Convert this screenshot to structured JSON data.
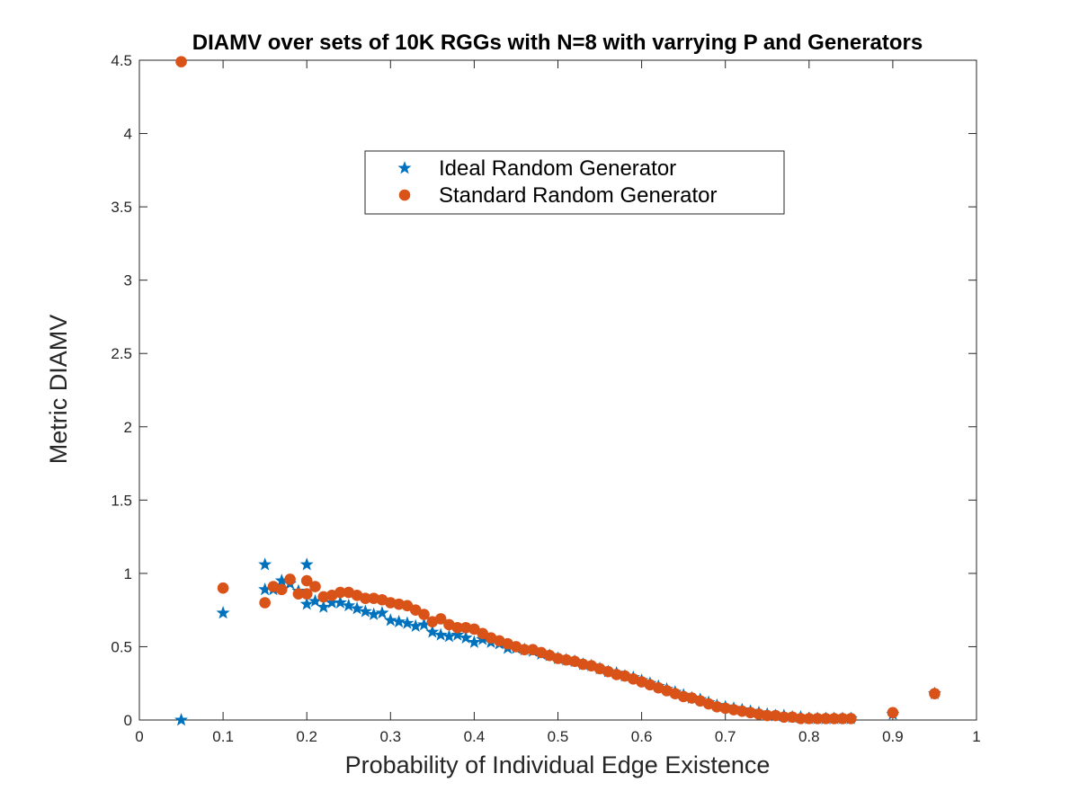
{
  "chart_data": {
    "type": "scatter",
    "title": "DIAMV over sets of 10K RGGs with N=8 with varrying P and Generators",
    "xlabel": "Probability of Individual Edge Existence",
    "ylabel": "Metric DIAMV",
    "xlim": [
      0,
      1
    ],
    "ylim": [
      0,
      4.5
    ],
    "xticks": [
      0,
      0.1,
      0.2,
      0.3,
      0.4,
      0.5,
      0.6,
      0.7,
      0.8,
      0.9,
      1
    ],
    "xtick_labels": [
      "0",
      "0.1",
      "0.2",
      "0.3",
      "0.4",
      "0.5",
      "0.6",
      "0.7",
      "0.8",
      "0.9",
      "1"
    ],
    "yticks": [
      0,
      0.5,
      1,
      1.5,
      2,
      2.5,
      3,
      3.5,
      4,
      4.5
    ],
    "ytick_labels": [
      "0",
      "0.5",
      "1",
      "1.5",
      "2",
      "2.5",
      "3",
      "3.5",
      "4",
      "4.5"
    ],
    "grid": false,
    "legend_position": "top-center",
    "series": [
      {
        "name": "Ideal Random Generator",
        "marker": "star",
        "color": "#0072BD",
        "points": [
          [
            0.05,
            0.0
          ],
          [
            0.1,
            0.73
          ],
          [
            0.15,
            1.06
          ],
          [
            0.15,
            0.89
          ],
          [
            0.16,
            0.89
          ],
          [
            0.17,
            0.95
          ],
          [
            0.18,
            0.93
          ],
          [
            0.19,
            0.88
          ],
          [
            0.2,
            1.06
          ],
          [
            0.2,
            0.79
          ],
          [
            0.21,
            0.81
          ],
          [
            0.22,
            0.77
          ],
          [
            0.23,
            0.8
          ],
          [
            0.24,
            0.8
          ],
          [
            0.25,
            0.78
          ],
          [
            0.26,
            0.76
          ],
          [
            0.27,
            0.74
          ],
          [
            0.28,
            0.72
          ],
          [
            0.29,
            0.73
          ],
          [
            0.3,
            0.68
          ],
          [
            0.31,
            0.67
          ],
          [
            0.32,
            0.66
          ],
          [
            0.33,
            0.64
          ],
          [
            0.34,
            0.65
          ],
          [
            0.35,
            0.6
          ],
          [
            0.36,
            0.58
          ],
          [
            0.37,
            0.57
          ],
          [
            0.38,
            0.58
          ],
          [
            0.39,
            0.56
          ],
          [
            0.4,
            0.53
          ],
          [
            0.41,
            0.55
          ],
          [
            0.42,
            0.53
          ],
          [
            0.43,
            0.52
          ],
          [
            0.44,
            0.49
          ],
          [
            0.45,
            0.49
          ],
          [
            0.46,
            0.48
          ],
          [
            0.47,
            0.47
          ],
          [
            0.48,
            0.45
          ],
          [
            0.49,
            0.44
          ],
          [
            0.5,
            0.42
          ],
          [
            0.51,
            0.41
          ],
          [
            0.52,
            0.4
          ],
          [
            0.53,
            0.38
          ],
          [
            0.54,
            0.37
          ],
          [
            0.55,
            0.35
          ],
          [
            0.56,
            0.33
          ],
          [
            0.57,
            0.32
          ],
          [
            0.58,
            0.3
          ],
          [
            0.59,
            0.29
          ],
          [
            0.6,
            0.27
          ],
          [
            0.61,
            0.25
          ],
          [
            0.62,
            0.23
          ],
          [
            0.63,
            0.21
          ],
          [
            0.64,
            0.19
          ],
          [
            0.65,
            0.17
          ],
          [
            0.66,
            0.15
          ],
          [
            0.67,
            0.14
          ],
          [
            0.68,
            0.12
          ],
          [
            0.69,
            0.1
          ],
          [
            0.7,
            0.09
          ],
          [
            0.71,
            0.08
          ],
          [
            0.72,
            0.07
          ],
          [
            0.73,
            0.06
          ],
          [
            0.74,
            0.05
          ],
          [
            0.75,
            0.04
          ],
          [
            0.76,
            0.03
          ],
          [
            0.77,
            0.03
          ],
          [
            0.78,
            0.02
          ],
          [
            0.79,
            0.02
          ],
          [
            0.8,
            0.01
          ],
          [
            0.81,
            0.01
          ],
          [
            0.82,
            0.01
          ],
          [
            0.83,
            0.01
          ],
          [
            0.84,
            0.01
          ],
          [
            0.85,
            0.01
          ],
          [
            0.9,
            0.04
          ],
          [
            0.95,
            0.18
          ]
        ]
      },
      {
        "name": "Standard Random Generator",
        "marker": "circle",
        "color": "#D95319",
        "points": [
          [
            0.05,
            4.49
          ],
          [
            0.1,
            0.9
          ],
          [
            0.15,
            0.8
          ],
          [
            0.16,
            0.91
          ],
          [
            0.17,
            0.89
          ],
          [
            0.18,
            0.96
          ],
          [
            0.19,
            0.86
          ],
          [
            0.2,
            0.95
          ],
          [
            0.2,
            0.86
          ],
          [
            0.21,
            0.91
          ],
          [
            0.22,
            0.84
          ],
          [
            0.23,
            0.85
          ],
          [
            0.24,
            0.87
          ],
          [
            0.25,
            0.87
          ],
          [
            0.26,
            0.85
          ],
          [
            0.27,
            0.83
          ],
          [
            0.28,
            0.83
          ],
          [
            0.29,
            0.82
          ],
          [
            0.3,
            0.8
          ],
          [
            0.31,
            0.79
          ],
          [
            0.32,
            0.78
          ],
          [
            0.33,
            0.75
          ],
          [
            0.34,
            0.72
          ],
          [
            0.35,
            0.67
          ],
          [
            0.36,
            0.69
          ],
          [
            0.37,
            0.65
          ],
          [
            0.38,
            0.63
          ],
          [
            0.39,
            0.63
          ],
          [
            0.4,
            0.62
          ],
          [
            0.41,
            0.59
          ],
          [
            0.42,
            0.56
          ],
          [
            0.43,
            0.54
          ],
          [
            0.44,
            0.52
          ],
          [
            0.45,
            0.5
          ],
          [
            0.46,
            0.48
          ],
          [
            0.47,
            0.48
          ],
          [
            0.48,
            0.46
          ],
          [
            0.49,
            0.44
          ],
          [
            0.5,
            0.42
          ],
          [
            0.51,
            0.41
          ],
          [
            0.52,
            0.4
          ],
          [
            0.53,
            0.38
          ],
          [
            0.54,
            0.37
          ],
          [
            0.55,
            0.35
          ],
          [
            0.56,
            0.33
          ],
          [
            0.57,
            0.31
          ],
          [
            0.58,
            0.3
          ],
          [
            0.59,
            0.28
          ],
          [
            0.6,
            0.26
          ],
          [
            0.61,
            0.24
          ],
          [
            0.62,
            0.22
          ],
          [
            0.63,
            0.2
          ],
          [
            0.64,
            0.18
          ],
          [
            0.65,
            0.16
          ],
          [
            0.66,
            0.15
          ],
          [
            0.67,
            0.13
          ],
          [
            0.68,
            0.11
          ],
          [
            0.69,
            0.09
          ],
          [
            0.7,
            0.08
          ],
          [
            0.71,
            0.07
          ],
          [
            0.72,
            0.06
          ],
          [
            0.73,
            0.05
          ],
          [
            0.74,
            0.04
          ],
          [
            0.75,
            0.03
          ],
          [
            0.76,
            0.03
          ],
          [
            0.77,
            0.02
          ],
          [
            0.78,
            0.02
          ],
          [
            0.79,
            0.01
          ],
          [
            0.8,
            0.01
          ],
          [
            0.81,
            0.01
          ],
          [
            0.82,
            0.01
          ],
          [
            0.83,
            0.01
          ],
          [
            0.84,
            0.01
          ],
          [
            0.85,
            0.01
          ],
          [
            0.9,
            0.05
          ],
          [
            0.95,
            0.18
          ]
        ]
      }
    ]
  }
}
